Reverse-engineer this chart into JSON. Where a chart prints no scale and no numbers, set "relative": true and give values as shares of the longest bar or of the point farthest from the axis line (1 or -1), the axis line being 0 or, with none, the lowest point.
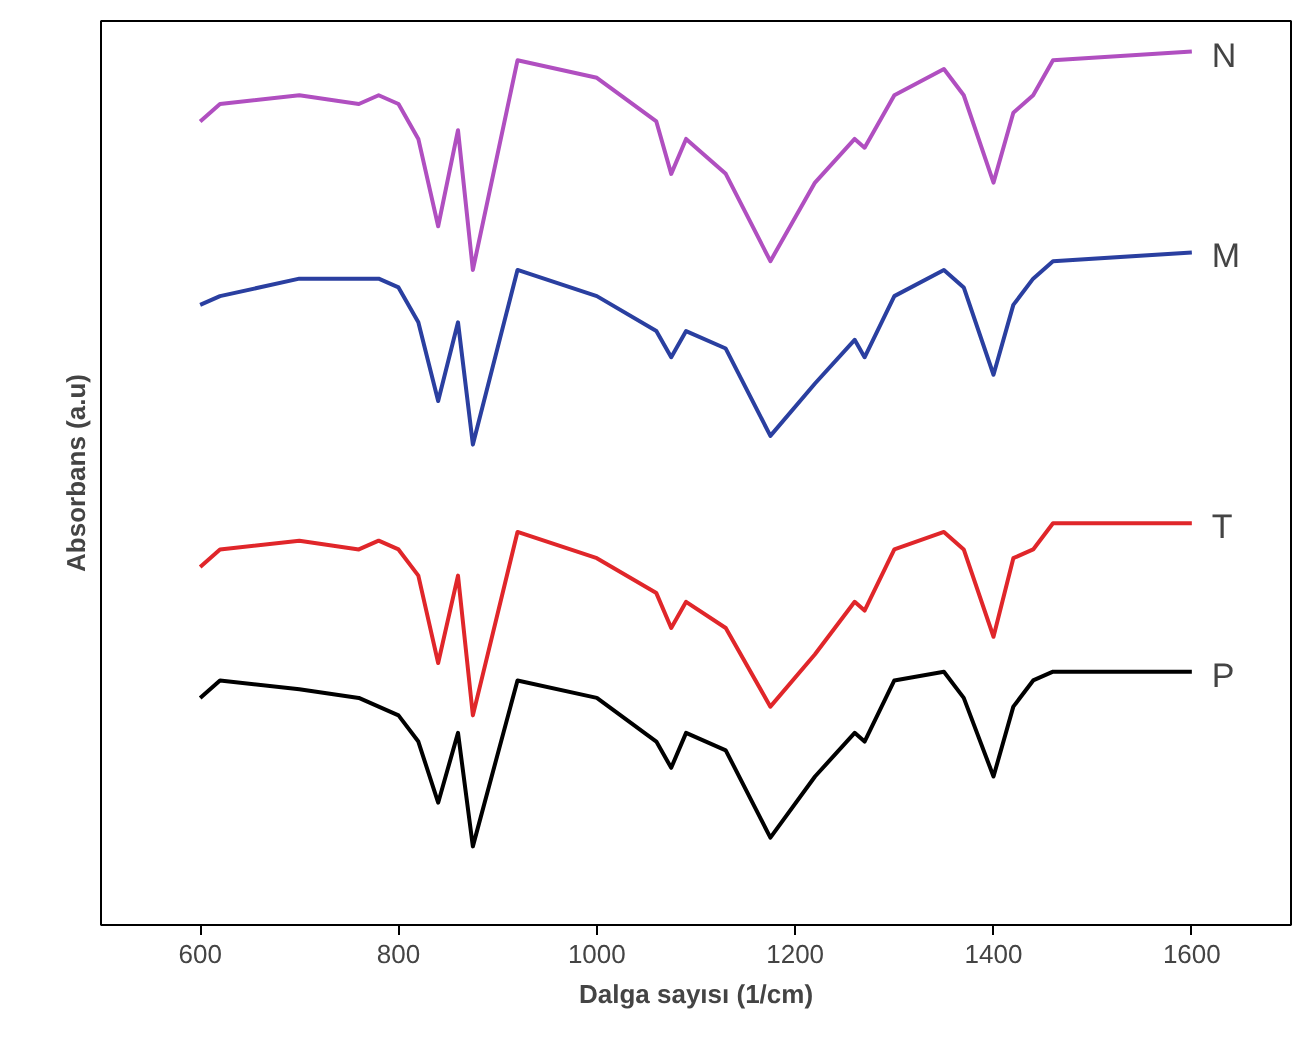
{
  "chart_data": {
    "type": "line",
    "relative": true,
    "xlabel": "Dalga sayısı (1/cm)",
    "ylabel": "Absorbans (a.u)",
    "xlim": [
      500,
      1700
    ],
    "xticks": [
      600,
      800,
      1000,
      1200,
      1400,
      1600
    ],
    "tick_labels": "x",
    "grid": false,
    "legend": false,
    "x": [
      600,
      620,
      700,
      760,
      780,
      800,
      820,
      840,
      860,
      875,
      920,
      1000,
      1060,
      1075,
      1090,
      1130,
      1175,
      1220,
      1260,
      1270,
      1300,
      1350,
      1370,
      1400,
      1420,
      1440,
      1460,
      1600
    ],
    "series": [
      {
        "name": "N",
        "color": "#b04fc0",
        "values": [
          0.92,
          0.94,
          0.95,
          0.94,
          0.95,
          0.94,
          0.9,
          0.8,
          0.91,
          0.75,
          0.99,
          0.97,
          0.92,
          0.86,
          0.9,
          0.86,
          0.76,
          0.85,
          0.9,
          0.89,
          0.95,
          0.98,
          0.95,
          0.85,
          0.93,
          0.95,
          0.99,
          1.0
        ]
      },
      {
        "name": "M",
        "color": "#2a3fa0",
        "values": [
          0.71,
          0.72,
          0.74,
          0.74,
          0.74,
          0.73,
          0.69,
          0.6,
          0.69,
          0.55,
          0.75,
          0.72,
          0.68,
          0.65,
          0.68,
          0.66,
          0.56,
          0.62,
          0.67,
          0.65,
          0.72,
          0.75,
          0.73,
          0.63,
          0.71,
          0.74,
          0.76,
          0.77
        ]
      },
      {
        "name": "T",
        "color": "#e0262a",
        "values": [
          0.41,
          0.43,
          0.44,
          0.43,
          0.44,
          0.43,
          0.4,
          0.3,
          0.4,
          0.24,
          0.45,
          0.42,
          0.38,
          0.34,
          0.37,
          0.34,
          0.25,
          0.31,
          0.37,
          0.36,
          0.43,
          0.45,
          0.43,
          0.33,
          0.42,
          0.43,
          0.46,
          0.46
        ]
      },
      {
        "name": "P",
        "color": "#000000",
        "values": [
          0.26,
          0.28,
          0.27,
          0.26,
          0.25,
          0.24,
          0.21,
          0.14,
          0.22,
          0.09,
          0.28,
          0.26,
          0.21,
          0.18,
          0.22,
          0.2,
          0.1,
          0.17,
          0.22,
          0.21,
          0.28,
          0.29,
          0.26,
          0.17,
          0.25,
          0.28,
          0.29,
          0.29
        ]
      }
    ]
  }
}
